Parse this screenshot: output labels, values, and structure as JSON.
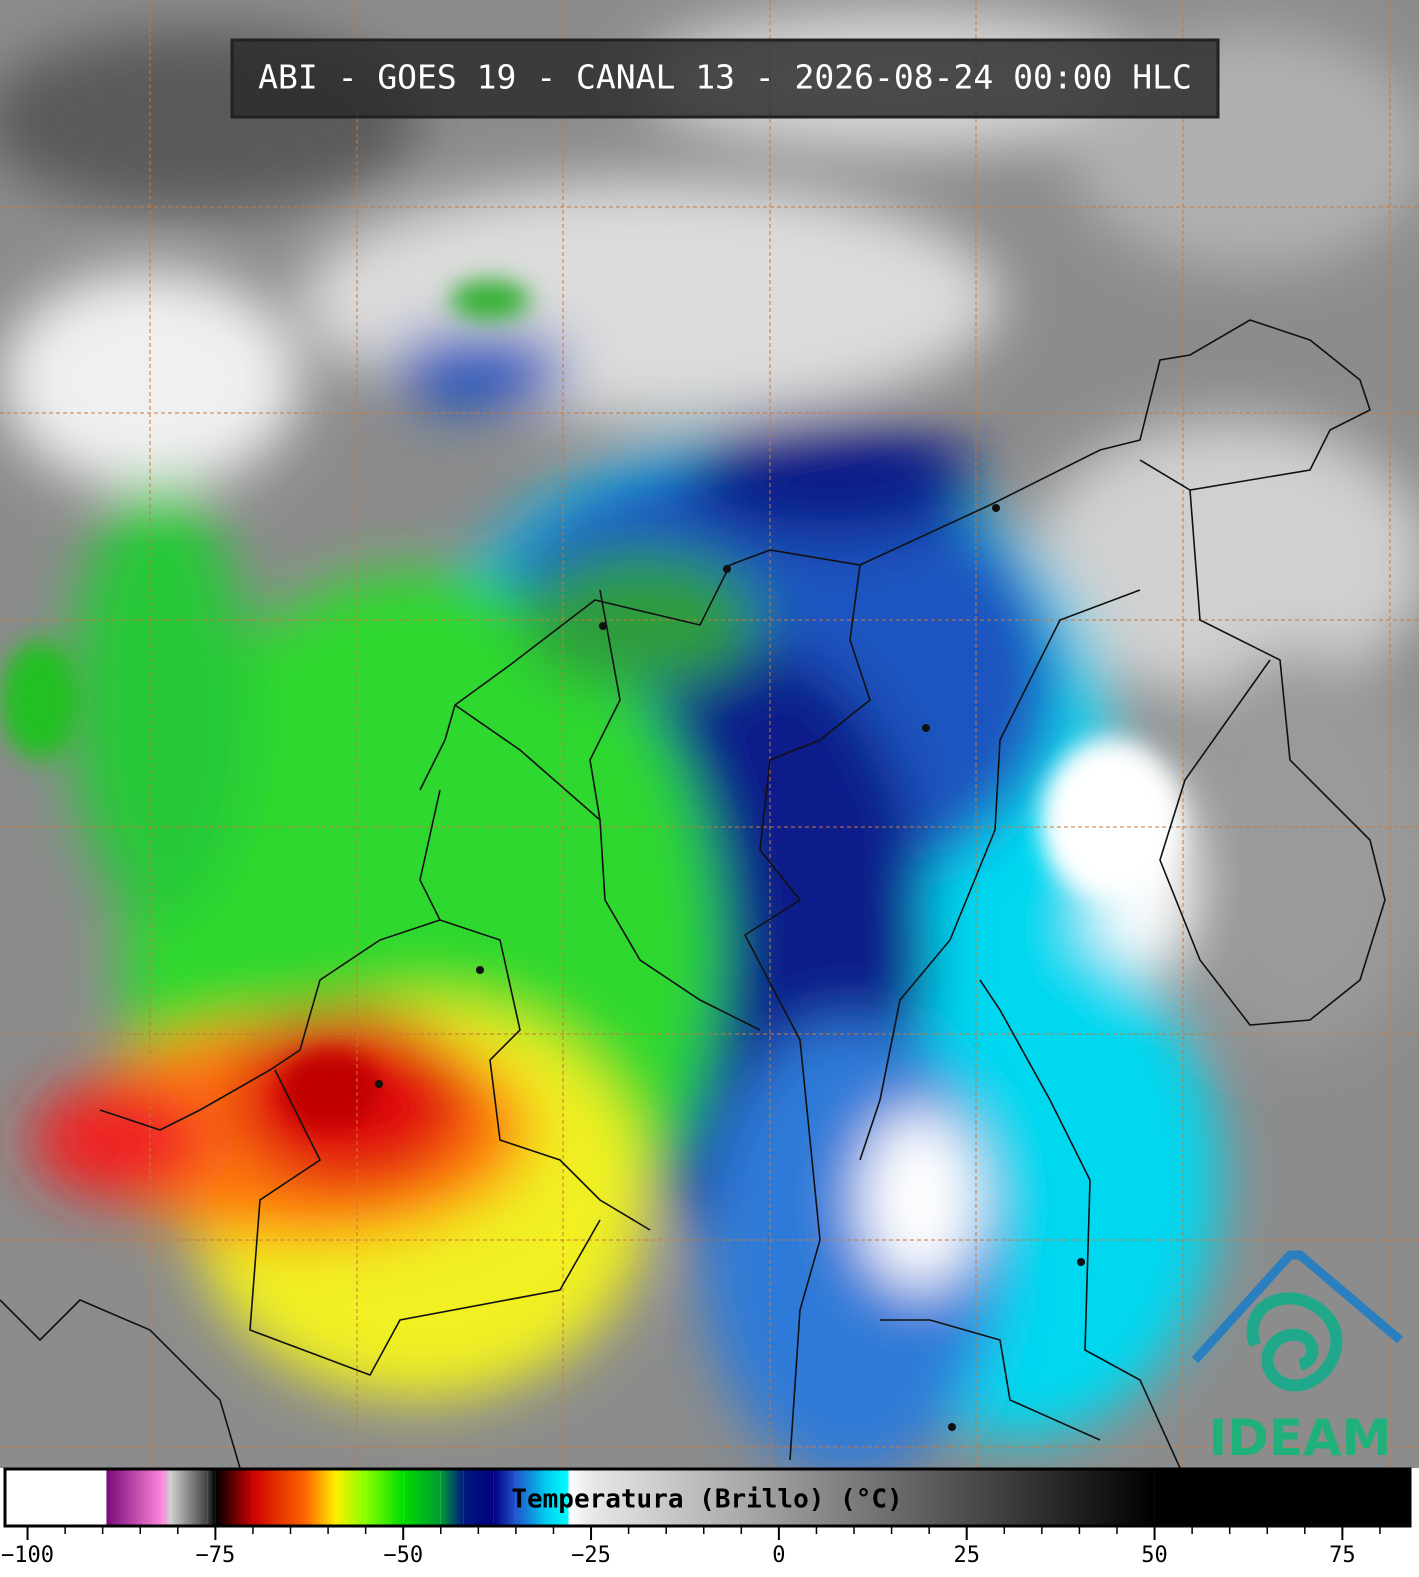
{
  "header": {
    "title": "ABI - GOES 19 - CANAL 13 - 2026-08-24 00:00 HLC"
  },
  "chart_data": {
    "type": "colorbar",
    "title": "Temperatura (Brillo) (°C)",
    "xlim": [
      -103,
      84
    ],
    "xticks": [
      {
        "value": -100,
        "label": "−100"
      },
      {
        "value": -75,
        "label": "−75"
      },
      {
        "value": -50,
        "label": "−50"
      },
      {
        "value": -25,
        "label": "−25"
      },
      0,
      25,
      50,
      75
    ],
    "xminorticks": [
      -95,
      -90,
      -85,
      -80,
      -70,
      -65,
      -60,
      -55,
      -45,
      -40,
      -35,
      -30,
      -20,
      -15,
      -10,
      -5,
      5,
      10,
      15,
      20,
      30,
      35,
      40,
      45,
      55,
      60,
      65,
      70,
      80
    ],
    "colormap": [
      {
        "value": -103,
        "color": "#ffffff"
      },
      {
        "value": -89.5,
        "color": "#ffffff"
      },
      {
        "value": -89.5,
        "color": "#7a0a7a"
      },
      {
        "value": -82,
        "color": "#ff88dd"
      },
      {
        "value": -81,
        "color": "#d0d0d0"
      },
      {
        "value": -76,
        "color": "#404040"
      },
      {
        "value": -75,
        "color": "#000000"
      },
      {
        "value": -70,
        "color": "#cc0000"
      },
      {
        "value": -63,
        "color": "#ff6600"
      },
      {
        "value": -59,
        "color": "#ffee00"
      },
      {
        "value": -55,
        "color": "#88ff00"
      },
      {
        "value": -50,
        "color": "#00dd00"
      },
      {
        "value": -45,
        "color": "#009933"
      },
      {
        "value": -42,
        "color": "#001a80"
      },
      {
        "value": -38,
        "color": "#000080"
      },
      {
        "value": -35,
        "color": "#2255cc"
      },
      {
        "value": -31,
        "color": "#00ccee"
      },
      {
        "value": -28,
        "color": "#00ffff"
      },
      {
        "value": -28,
        "color": "#ffffff"
      },
      {
        "value": -25,
        "color": "#e8e8e8"
      },
      {
        "value": 50,
        "color": "#000000"
      },
      {
        "value": 84,
        "color": "#000000"
      }
    ]
  },
  "logo": {
    "text": "IDEAM"
  }
}
